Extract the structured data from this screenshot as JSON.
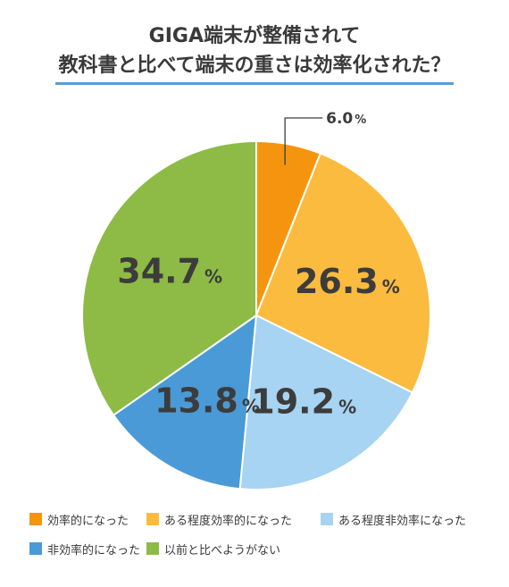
{
  "chart_data": {
    "type": "pie",
    "title_lines": [
      "GIGA端末が整備されて",
      "教科書と比べて端末の重さは効率化された？"
    ],
    "unit": "%",
    "slices": [
      {
        "label": "効率的になった",
        "value": 6.0,
        "display": "6.0",
        "color": "#f5950f"
      },
      {
        "label": "ある程度効率的になった",
        "value": 26.3,
        "display": "26.3",
        "color": "#fbbb3f"
      },
      {
        "label": "ある程度非効率になった",
        "value": 19.2,
        "display": "19.2",
        "color": "#a6d4f2"
      },
      {
        "label": "非効率的になった",
        "value": 13.8,
        "display": "13.8",
        "color": "#4a9ad8"
      },
      {
        "label": "以前と比べようがない",
        "value": 34.7,
        "display": "34.7",
        "color": "#8dbb45"
      }
    ],
    "start_angle": "12 o'clock, clockwise",
    "legend_position": "bottom"
  }
}
